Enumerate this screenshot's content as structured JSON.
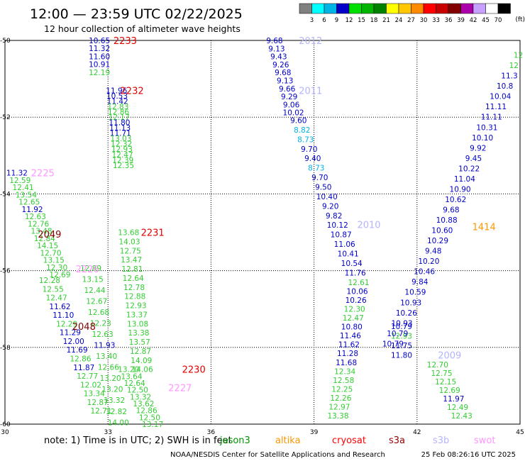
{
  "header": {
    "title": "12:00 — 23:59 UTC 02/22/2025",
    "subtitle": "12 hour collection of altimeter wave heights"
  },
  "colorbar": {
    "unit": "(ft)",
    "ticks": [
      "3",
      "6",
      "9",
      "12",
      "15",
      "18",
      "21",
      "24",
      "27",
      "30",
      "33",
      "36",
      "39",
      "42",
      "45",
      "70"
    ],
    "colors": [
      "#808080",
      "#00ffff",
      "#00b4e6",
      "#0000c8",
      "#00e000",
      "#00b400",
      "#008200",
      "#ffff00",
      "#ffc800",
      "#ff8c00",
      "#ff0000",
      "#c80000",
      "#820000",
      "#aa00aa",
      "#c8a0ff",
      "#ffffff",
      "#000000"
    ]
  },
  "footer": {
    "note": "note:  1) Time is in UTC; 2) SWH is in feet",
    "satellites": [
      {
        "name": "jason3",
        "color": "#009600"
      },
      {
        "name": "altika",
        "color": "#ff9600"
      },
      {
        "name": "cryosat",
        "color": "#ff0000"
      },
      {
        "name": "s3a",
        "color": "#960000"
      },
      {
        "name": "s3b",
        "color": "#b4b4ff"
      },
      {
        "name": "swot",
        "color": "#ff96ff"
      }
    ],
    "credit": "NOAA/NESDIS Center for Satellite Applications and Research",
    "timestamp": "25 Feb 08:26:16 UTC 2025"
  },
  "chart_data": {
    "type": "scatter",
    "xlim": [
      30,
      45
    ],
    "ylim": [
      -60,
      -50
    ],
    "x_ticks": [
      "30",
      "33",
      "36",
      "39",
      "42",
      "45"
    ],
    "y_ticks": [
      "-50",
      "-52",
      "-54",
      "-56",
      "-58",
      "-60"
    ],
    "grid": true,
    "colors": {
      "green": "#32cd32",
      "blue": "#0000c8",
      "cyan": "#00b4e6",
      "orange": "#ff9600",
      "darkred": "#820000"
    },
    "tracks": [
      {
        "label": "2233",
        "label_color": "#e00000",
        "lx": 33.5,
        "ly": -50.0,
        "x0": 32.75,
        "y0": -50.0,
        "x1": 32.75,
        "y1": -50.83,
        "values": [
          [
            "10.65",
            "blue"
          ],
          [
            "11.32",
            "blue"
          ],
          [
            "11.60",
            "blue"
          ],
          [
            "10.91",
            "blue"
          ],
          [
            "12.19",
            "green"
          ]
        ]
      },
      {
        "label": "2232",
        "label_color": "#e00000",
        "lx": 33.7,
        "ly": -51.3,
        "x0": 33.25,
        "y0": -51.3,
        "x1": 33.45,
        "y1": -53.25,
        "values": [
          [
            "11.96",
            "blue"
          ],
          [
            "10.53",
            "blue"
          ],
          [
            "11.42",
            "blue"
          ],
          [
            "12.83",
            "green"
          ],
          [
            "12.86",
            "green"
          ],
          [
            "12.17",
            "green"
          ],
          [
            "11.80",
            "blue"
          ],
          [
            "11.13",
            "blue"
          ],
          [
            "11.71",
            "blue"
          ],
          [
            "13.03",
            "green"
          ],
          [
            "12.32",
            "green"
          ],
          [
            "12.93",
            "green"
          ],
          [
            "12.47",
            "green"
          ],
          [
            "12.39",
            "green"
          ],
          [
            "12.35",
            "green"
          ]
        ]
      },
      {
        "label": "2231",
        "label_color": "#e00000",
        "lx": 34.3,
        "ly": -55.0,
        "x0": 33.6,
        "y0": -55.0,
        "x1": 34.0,
        "y1": -58.57,
        "values": [
          [
            "13.68",
            "green"
          ],
          [
            "14.03",
            "green"
          ],
          [
            "12.75",
            "green"
          ],
          [
            "13.47",
            "green"
          ],
          [
            "12.81",
            "green"
          ],
          [
            "12.64",
            "green"
          ],
          [
            "12.78",
            "green"
          ],
          [
            "12.88",
            "green"
          ],
          [
            "12.93",
            "green"
          ],
          [
            "13.37",
            "green"
          ],
          [
            "13.08",
            "green"
          ],
          [
            "13.38",
            "green"
          ],
          [
            "13.57",
            "green"
          ],
          [
            "12.87",
            "green"
          ],
          [
            "14.09",
            "green"
          ],
          [
            "14.06",
            "green"
          ]
        ]
      },
      {
        "label": "2230",
        "label_color": "#e00000",
        "lx": 35.5,
        "ly": -58.57,
        "x0": 33.6,
        "y0": -58.57,
        "x1": 34.3,
        "y1": -60.0,
        "values": [
          [
            "13.20",
            "green"
          ],
          [
            "13.64",
            "green"
          ],
          [
            "12.64",
            "green"
          ],
          [
            "12.50",
            "green"
          ],
          [
            "13.32",
            "green"
          ],
          [
            "13.62",
            "green"
          ],
          [
            "12.86",
            "green"
          ],
          [
            "12.50",
            "green"
          ],
          [
            "13.17",
            "green"
          ]
        ]
      },
      {
        "label": "2227",
        "label_color": "#ff96ff",
        "lx": 35.1,
        "ly": -59.05,
        "x0": 34.7,
        "y0": -59.05,
        "x1": 34.7,
        "y1": -59.05,
        "values": []
      },
      {
        "label": "2226",
        "label_color": "#ff96ff",
        "lx": 32.4,
        "ly": -55.95,
        "x0": 32.4,
        "y0": -55.95,
        "x1": 32.4,
        "y1": -55.95,
        "values": []
      },
      {
        "label": "2225",
        "label_color": "#ff96ff",
        "lx": 31.1,
        "ly": -53.45,
        "x0": 30.35,
        "y0": -53.45,
        "x1": 31.6,
        "y1": -56.1,
        "values": [
          [
            "11.32",
            "blue"
          ],
          [
            "12.59",
            "green"
          ],
          [
            "12.41",
            "green"
          ],
          [
            "13.54",
            "green"
          ],
          [
            "12.65",
            "green"
          ],
          [
            "11.92",
            "blue"
          ],
          [
            "12.63",
            "green"
          ],
          [
            "12.76",
            "green"
          ],
          [
            "13.48",
            "green"
          ],
          [
            "12.84",
            "green"
          ],
          [
            "14.15",
            "green"
          ],
          [
            "12.70",
            "green"
          ],
          [
            "13.15",
            "green"
          ],
          [
            "12.30",
            "green"
          ],
          [
            "12.69",
            "green"
          ]
        ]
      },
      {
        "label": "2049",
        "label_color": "#820000",
        "lx": 31.3,
        "ly": -55.05,
        "x0": 31.3,
        "y0": -55.05,
        "x1": 31.3,
        "y1": -55.05,
        "values": []
      },
      {
        "label": "2048",
        "label_color": "#820000",
        "lx": 32.3,
        "ly": -57.45,
        "x0": 32.3,
        "y0": -57.45,
        "x1": 32.3,
        "y1": -57.45,
        "values": []
      },
      {
        "label": "",
        "label_color": "#000000",
        "lx": 0,
        "ly": 0,
        "x0": 31.3,
        "y0": -56.25,
        "x1": 32.8,
        "y1": -59.65,
        "values": [
          [
            "12.28",
            "green"
          ],
          [
            "12.55",
            "green"
          ],
          [
            "12.47",
            "green"
          ],
          [
            "11.62",
            "blue"
          ],
          [
            "11.10",
            "blue"
          ],
          [
            "12.29",
            "green"
          ],
          [
            "11.29",
            "blue"
          ],
          [
            "12.00",
            "blue"
          ],
          [
            "11.69",
            "blue"
          ],
          [
            "12.86",
            "green"
          ],
          [
            "11.87",
            "blue"
          ],
          [
            "12.77",
            "green"
          ],
          [
            "12.02",
            "green"
          ],
          [
            "13.34",
            "green"
          ],
          [
            "12.87",
            "green"
          ],
          [
            "12.71",
            "green"
          ]
        ]
      },
      {
        "label": "",
        "label_color": "#000000",
        "lx": 0,
        "ly": 0,
        "x0": 32.5,
        "y0": -55.93,
        "x1": 33.3,
        "y1": -59.95,
        "values": [
          [
            "12.89",
            "green"
          ],
          [
            "13.15",
            "green"
          ],
          [
            "12.44",
            "green"
          ],
          [
            "12.67",
            "green"
          ],
          [
            "12.68",
            "green"
          ],
          [
            "12.23",
            "green"
          ],
          [
            "12.63",
            "green"
          ],
          [
            "11.93",
            "blue"
          ],
          [
            "13.40",
            "green"
          ],
          [
            "12.66",
            "green"
          ],
          [
            "13.20",
            "green"
          ],
          [
            "13.20",
            "green"
          ],
          [
            "13.32",
            "green"
          ],
          [
            "12.82",
            "green"
          ],
          [
            "14.00",
            "green"
          ]
        ]
      },
      {
        "label": "2012",
        "label_color": "#b4b4ff",
        "lx": 38.9,
        "ly": -50.0,
        "x0": 37.85,
        "y0": -50.0,
        "x1": 38.4,
        "y1": -51.88,
        "values": [
          [
            "9.68",
            "blue"
          ],
          [
            "9.13",
            "blue"
          ],
          [
            "9.43",
            "blue"
          ],
          [
            "9.26",
            "blue"
          ],
          [
            "9.68",
            "blue"
          ],
          [
            "9.13",
            "blue"
          ],
          [
            "9.66",
            "blue"
          ],
          [
            "9.29",
            "blue"
          ],
          [
            "9.06",
            "blue"
          ],
          [
            "10.02",
            "blue"
          ]
        ]
      },
      {
        "label": "2011",
        "label_color": "#b4b4ff",
        "lx": 38.9,
        "ly": -51.3,
        "x0": 0,
        "y0": 0,
        "x1": 0,
        "y1": 0,
        "values": []
      },
      {
        "label": "2010",
        "label_color": "#b4b4ff",
        "lx": 40.6,
        "ly": -54.8,
        "x0": 38.55,
        "y0": -52.08,
        "x1": 40.2,
        "y1": -56.05,
        "values": [
          [
            "9.60",
            "blue"
          ],
          [
            "8.82",
            "cyan"
          ],
          [
            "8.73",
            "cyan"
          ],
          [
            "9.70",
            "blue"
          ],
          [
            "9.40",
            "blue"
          ],
          [
            "8.73",
            "cyan"
          ],
          [
            "9.70",
            "blue"
          ],
          [
            "9.50",
            "blue"
          ],
          [
            "10.40",
            "blue"
          ],
          [
            "9.20",
            "blue"
          ],
          [
            "9.82",
            "blue"
          ],
          [
            "10.12",
            "blue"
          ],
          [
            "10.87",
            "blue"
          ],
          [
            "11.06",
            "blue"
          ],
          [
            "10.41",
            "blue"
          ],
          [
            "10.54",
            "blue"
          ],
          [
            "11.76",
            "blue"
          ]
        ]
      },
      {
        "label": "",
        "label_color": "#000000",
        "lx": 0,
        "ly": 0,
        "x0": 40.3,
        "y0": -56.3,
        "x1": 39.7,
        "y1": -59.78,
        "values": [
          [
            "12.61",
            "green"
          ],
          [
            "10.06",
            "blue"
          ],
          [
            "10.26",
            "blue"
          ],
          [
            "12.30",
            "green"
          ],
          [
            "12.47",
            "green"
          ],
          [
            "10.80",
            "blue"
          ],
          [
            "11.46",
            "blue"
          ],
          [
            "11.62",
            "blue"
          ],
          [
            "11.28",
            "blue"
          ],
          [
            "11.68",
            "blue"
          ],
          [
            "12.34",
            "green"
          ],
          [
            "12.58",
            "green"
          ],
          [
            "12.25",
            "green"
          ],
          [
            "12.26",
            "green"
          ],
          [
            "12.97",
            "green"
          ],
          [
            "13.38",
            "green"
          ]
        ]
      },
      {
        "label": "2009",
        "label_color": "#b4b4ff",
        "lx": 42.95,
        "ly": -58.2,
        "x0": 41.55,
        "y0": -57.45,
        "x1": 41.55,
        "y1": -58.2,
        "values": [
          [
            "10.79",
            "blue"
          ],
          [
            "12.93",
            "green"
          ],
          [
            "11.75",
            "blue"
          ],
          [
            "11.80",
            "blue"
          ]
        ]
      },
      {
        "label": "",
        "label_color": "#000000",
        "lx": 0,
        "ly": 0,
        "x0": 42.6,
        "y0": -58.45,
        "x1": 43.3,
        "y1": -59.78,
        "values": [
          [
            "12.70",
            "green"
          ],
          [
            "12.75",
            "green"
          ],
          [
            "12.15",
            "green"
          ],
          [
            "12.69",
            "green"
          ],
          [
            "11.97",
            "blue"
          ],
          [
            "12.49",
            "green"
          ],
          [
            "12.43",
            "green"
          ]
        ]
      },
      {
        "label": "1414",
        "label_color": "#ff9600",
        "lx": 43.95,
        "ly": -54.85,
        "x0": 41.55,
        "y0": -57.2,
        "x1": 41.55,
        "y1": -57.2,
        "values": []
      },
      {
        "label": "",
        "label_color": "#000000",
        "lx": 0,
        "ly": 0,
        "x0": 44.95,
        "y0": -50.38,
        "x1": 41.3,
        "y1": -57.9,
        "values": [
          [
            "12",
            "green"
          ],
          [
            "12",
            "green"
          ],
          [
            "11.3",
            "blue"
          ],
          [
            "10.8",
            "blue"
          ],
          [
            "10.04",
            "blue"
          ],
          [
            "11.11",
            "blue"
          ],
          [
            "11.11",
            "blue"
          ],
          [
            "10.31",
            "blue"
          ],
          [
            "10.10",
            "blue"
          ],
          [
            "9.92",
            "blue"
          ],
          [
            "9.45",
            "blue"
          ],
          [
            "10.22",
            "blue"
          ],
          [
            "11.04",
            "blue"
          ],
          [
            "10.90",
            "blue"
          ],
          [
            "10.62",
            "blue"
          ],
          [
            "9.68",
            "blue"
          ],
          [
            "10.88",
            "blue"
          ],
          [
            "10.60",
            "blue"
          ],
          [
            "10.29",
            "blue"
          ],
          [
            "9.48",
            "blue"
          ],
          [
            "10.20",
            "blue"
          ],
          [
            "10.46",
            "blue"
          ],
          [
            "9.84",
            "blue"
          ],
          [
            "10.59",
            "blue"
          ],
          [
            "10.93",
            "blue"
          ],
          [
            "10.26",
            "blue"
          ],
          [
            "10.93",
            "blue"
          ],
          [
            "10.79",
            "blue"
          ],
          [
            "10.79",
            "blue"
          ]
        ]
      }
    ]
  }
}
